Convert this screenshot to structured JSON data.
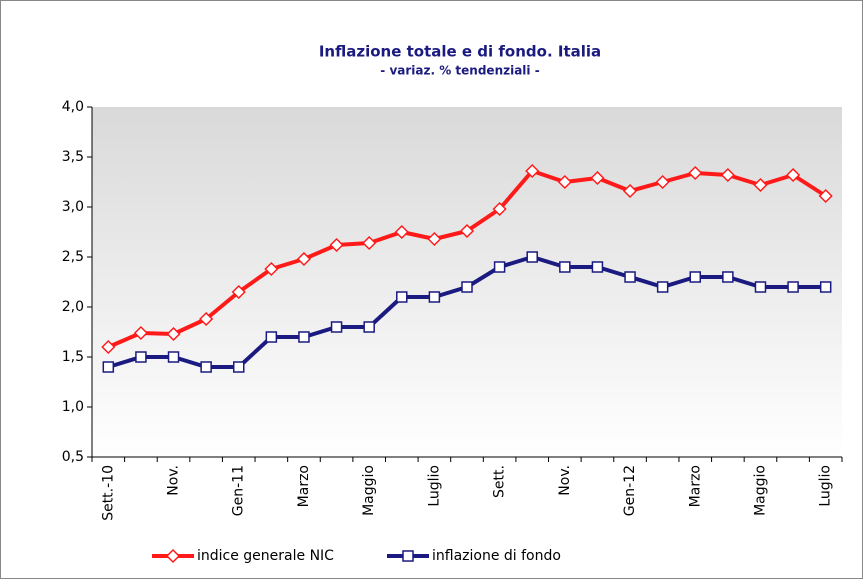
{
  "chart_data": {
    "type": "line",
    "title": "Inflazione totale e di fondo. Italia",
    "subtitle": "- variaz. % tendenziali  -",
    "categories": [
      "Sett.-10",
      null,
      "Nov.",
      null,
      "Gen-11",
      null,
      "Marzo",
      null,
      "Maggio",
      null,
      "Luglio",
      null,
      "Sett.",
      null,
      "Nov.",
      null,
      "Gen-12",
      null,
      "Marzo",
      null,
      "Maggio",
      null,
      "Luglio"
    ],
    "series": [
      {
        "name": "indice generale NIC",
        "color": "#ff1a1a",
        "marker": "diamond",
        "values": [
          1.6,
          1.74,
          1.73,
          1.88,
          2.15,
          2.38,
          2.48,
          2.62,
          2.64,
          2.75,
          2.68,
          2.76,
          2.98,
          3.36,
          3.25,
          3.29,
          3.16,
          3.25,
          3.34,
          3.32,
          3.22,
          3.32,
          3.11
        ]
      },
      {
        "name": "inflazione di fondo",
        "color": "#1a1a80",
        "marker": "square",
        "values": [
          1.4,
          1.5,
          1.5,
          1.4,
          1.4,
          1.7,
          1.7,
          1.8,
          1.8,
          2.1,
          2.1,
          2.2,
          2.4,
          2.5,
          2.4,
          2.4,
          2.3,
          2.2,
          2.3,
          2.3,
          2.2,
          2.2,
          2.2
        ]
      }
    ],
    "ylim": [
      0.5,
      4.0
    ],
    "yticks": [
      {
        "value": 0.5,
        "label": "0,5"
      },
      {
        "value": 1.0,
        "label": "1,0"
      },
      {
        "value": 1.5,
        "label": "1,5"
      },
      {
        "value": 2.0,
        "label": "2,0"
      },
      {
        "value": 2.5,
        "label": "2,5"
      },
      {
        "value": 3.0,
        "label": "3,0"
      },
      {
        "value": 3.5,
        "label": "3,5"
      },
      {
        "value": 4.0,
        "label": "4,0"
      }
    ],
    "legend": "bottom"
  }
}
